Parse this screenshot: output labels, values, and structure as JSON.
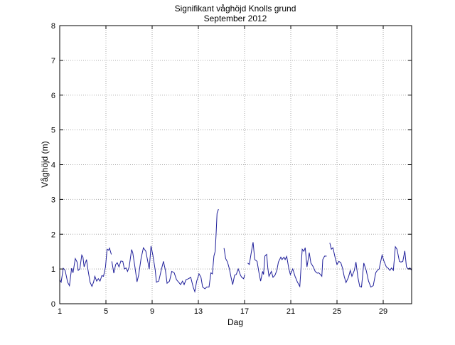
{
  "chart_data": {
    "type": "line",
    "title": "Signifikant våghöjd Knolls grund",
    "subtitle": "September 2012",
    "xlabel": "Dag",
    "ylabel": "Våghöjd (m)",
    "xlim": [
      1,
      31.46
    ],
    "ylim": [
      0,
      8
    ],
    "xticks": [
      1,
      5,
      9,
      13,
      17,
      21,
      25,
      29
    ],
    "yticks": [
      0,
      1,
      2,
      3,
      4,
      5,
      6,
      7,
      8
    ],
    "grid": true,
    "line_color": "#1f1f9a",
    "series": [
      {
        "x": [
          1.0,
          1.12,
          1.31,
          1.47,
          1.68,
          1.84,
          2.03,
          2.15,
          2.35,
          2.5,
          2.6,
          2.74,
          2.91,
          3.01,
          3.11,
          3.32,
          3.42,
          3.63,
          3.79,
          3.93,
          4.04,
          4.2,
          4.34,
          4.49,
          4.65,
          4.79,
          4.96,
          5.1,
          5.23,
          5.31,
          5.47,
          null,
          5.51,
          5.68,
          5.84,
          5.98,
          6.13,
          6.29,
          6.46,
          6.6,
          6.74,
          6.87,
          7.01,
          7.22,
          7.32,
          7.52,
          7.69,
          7.83,
          8.04,
          8.24,
          8.45,
          8.65,
          8.75,
          8.9,
          9.06,
          9.27,
          9.37,
          9.57,
          9.78,
          9.98,
          10.15,
          10.29,
          10.5,
          10.7,
          10.91,
          11.11,
          11.32,
          11.46,
          11.63,
          11.77,
          11.93,
          12.14,
          12.34,
          12.55,
          12.69,
          12.86,
          13.06,
          13.23,
          13.37,
          13.57,
          13.72,
          13.92,
          14.09,
          14.21,
          14.35,
          14.46,
          14.54,
          14.62,
          14.74,
          null,
          15.22,
          15.36,
          15.52,
          15.69,
          15.83,
          15.97,
          16.14,
          16.28,
          16.45,
          16.65,
          16.75,
          16.92,
          17.02,
          null,
          17.27,
          17.41,
          17.58,
          17.74,
          17.88,
          18.08,
          18.25,
          18.39,
          18.56,
          18.64,
          18.76,
          18.91,
          19.01,
          19.11,
          19.32,
          19.46,
          19.63,
          19.79,
          19.93,
          20.14,
          20.24,
          20.41,
          20.51,
          20.65,
          20.82,
          20.96,
          21.17,
          21.37,
          21.58,
          21.78,
          21.99,
          22.13,
          22.25,
          22.4,
          22.6,
          22.74,
          22.95,
          23.11,
          23.28,
          23.42,
          23.57,
          23.69,
          23.77,
          23.93,
          24.1,
          null,
          24.38,
          24.51,
          24.65,
          24.86,
          25.0,
          25.16,
          25.33,
          25.47,
          25.62,
          25.78,
          25.99,
          26.15,
          26.29,
          26.5,
          26.64,
          26.81,
          26.97,
          27.12,
          27.32,
          27.53,
          27.73,
          27.93,
          28.14,
          28.35,
          28.49,
          28.65,
          28.82,
          28.9,
          29.06,
          29.27,
          29.43,
          29.58,
          29.72,
          29.88,
          30.05,
          30.19,
          30.4,
          30.54,
          30.7,
          30.87,
          31.01,
          31.15,
          31.32,
          31.46
        ],
        "y": [
          0.69,
          0.62,
          1.02,
          0.96,
          0.62,
          0.52,
          1.02,
          0.89,
          1.3,
          1.2,
          0.96,
          1.0,
          1.4,
          1.34,
          1.06,
          1.27,
          1.03,
          0.62,
          0.5,
          0.62,
          0.79,
          0.65,
          0.72,
          0.65,
          0.81,
          0.79,
          1.06,
          1.57,
          1.54,
          1.6,
          1.42,
          null,
          1.22,
          0.88,
          1.13,
          1.18,
          1.06,
          1.23,
          1.22,
          1.0,
          1.03,
          0.93,
          1.06,
          1.56,
          1.47,
          1.03,
          0.63,
          0.82,
          1.3,
          1.61,
          1.51,
          1.17,
          1.0,
          1.66,
          1.4,
          0.96,
          0.62,
          0.65,
          0.96,
          1.22,
          0.96,
          0.59,
          0.65,
          0.93,
          0.89,
          0.69,
          0.61,
          0.55,
          0.65,
          0.55,
          0.69,
          0.72,
          0.76,
          0.48,
          0.35,
          0.65,
          0.86,
          0.76,
          0.48,
          0.43,
          0.48,
          0.48,
          0.89,
          0.86,
          1.37,
          1.51,
          2.02,
          2.6,
          2.72,
          null,
          1.6,
          1.3,
          1.2,
          1.0,
          0.76,
          0.55,
          0.82,
          0.84,
          1.0,
          0.82,
          0.76,
          0.72,
          0.84,
          null,
          1.17,
          1.13,
          1.47,
          1.77,
          1.27,
          1.22,
          0.89,
          0.65,
          0.93,
          0.84,
          1.37,
          1.42,
          1.03,
          0.79,
          0.93,
          0.76,
          0.82,
          0.96,
          1.2,
          1.34,
          1.27,
          1.34,
          1.27,
          1.36,
          1.03,
          0.84,
          1.0,
          0.79,
          0.62,
          0.5,
          1.57,
          1.51,
          1.61,
          1.06,
          1.47,
          1.17,
          1.06,
          0.93,
          0.88,
          0.89,
          0.84,
          0.79,
          1.27,
          1.37,
          1.37,
          null,
          1.75,
          1.57,
          1.61,
          1.3,
          1.13,
          1.22,
          1.18,
          1.03,
          0.79,
          0.61,
          0.76,
          0.96,
          0.79,
          0.96,
          1.2,
          0.76,
          0.5,
          0.48,
          1.17,
          0.96,
          0.65,
          0.48,
          0.52,
          0.89,
          0.96,
          1.0,
          1.27,
          1.4,
          1.23,
          1.06,
          1.02,
          0.96,
          1.03,
          0.96,
          1.64,
          1.57,
          1.22,
          1.2,
          1.22,
          1.52,
          1.06,
          1.0,
          1.03,
          0.96
        ]
      }
    ]
  }
}
